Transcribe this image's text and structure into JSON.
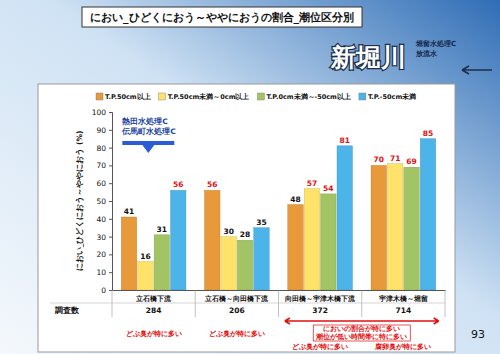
{
  "chart_data": {
    "type": "bar",
    "title": "におい_ひどくにおう～ややにおうの割合_潮位区分別",
    "location_title": "新堀川",
    "outfall_note": [
      "堀留水処理C",
      "放流水"
    ],
    "y_label": "におい_ひどくにおう～ややにおう (%)",
    "categories": [
      "立石橋下流",
      "立石橋～向田橋下流",
      "向田橋～宇津木橋下流",
      "宇津木橋～堀留"
    ],
    "series": [
      {
        "name": "T.P.50cm以上",
        "color": "#e8993a",
        "values": [
          41,
          56,
          48,
          70
        ]
      },
      {
        "name": "T.P.50cm未満～0cm以上",
        "color": "#ffe26a",
        "values": [
          16,
          30,
          57,
          71
        ]
      },
      {
        "name": "T.P.0cm未満～-50cm以上",
        "color": "#a3c465",
        "values": [
          31,
          28,
          54,
          69
        ]
      },
      {
        "name": "T.P.-50cm未満",
        "color": "#4db4ea",
        "values": [
          56,
          35,
          81,
          85
        ]
      }
    ],
    "ylim": [
      0,
      100
    ],
    "yticks": [
      0,
      10,
      20,
      30,
      40,
      50,
      60,
      70,
      80,
      90,
      100
    ],
    "grid": false,
    "legend": "top",
    "data_labels": true,
    "survey_label": "調査数",
    "survey_counts": [
      284,
      206,
      372,
      714
    ],
    "plant_note": [
      "熱田水処理C",
      "伝馬町水処理C"
    ],
    "range_note": [
      "においの割合が特に多い",
      "潮位が低い時間帯に特に多い"
    ],
    "bottom_notes": [
      "どぶ臭が特に多い",
      "どぶ臭が特に多い",
      "どぶ臭が特に多い",
      "腐卵臭が特に多い"
    ],
    "page_number": 93
  }
}
